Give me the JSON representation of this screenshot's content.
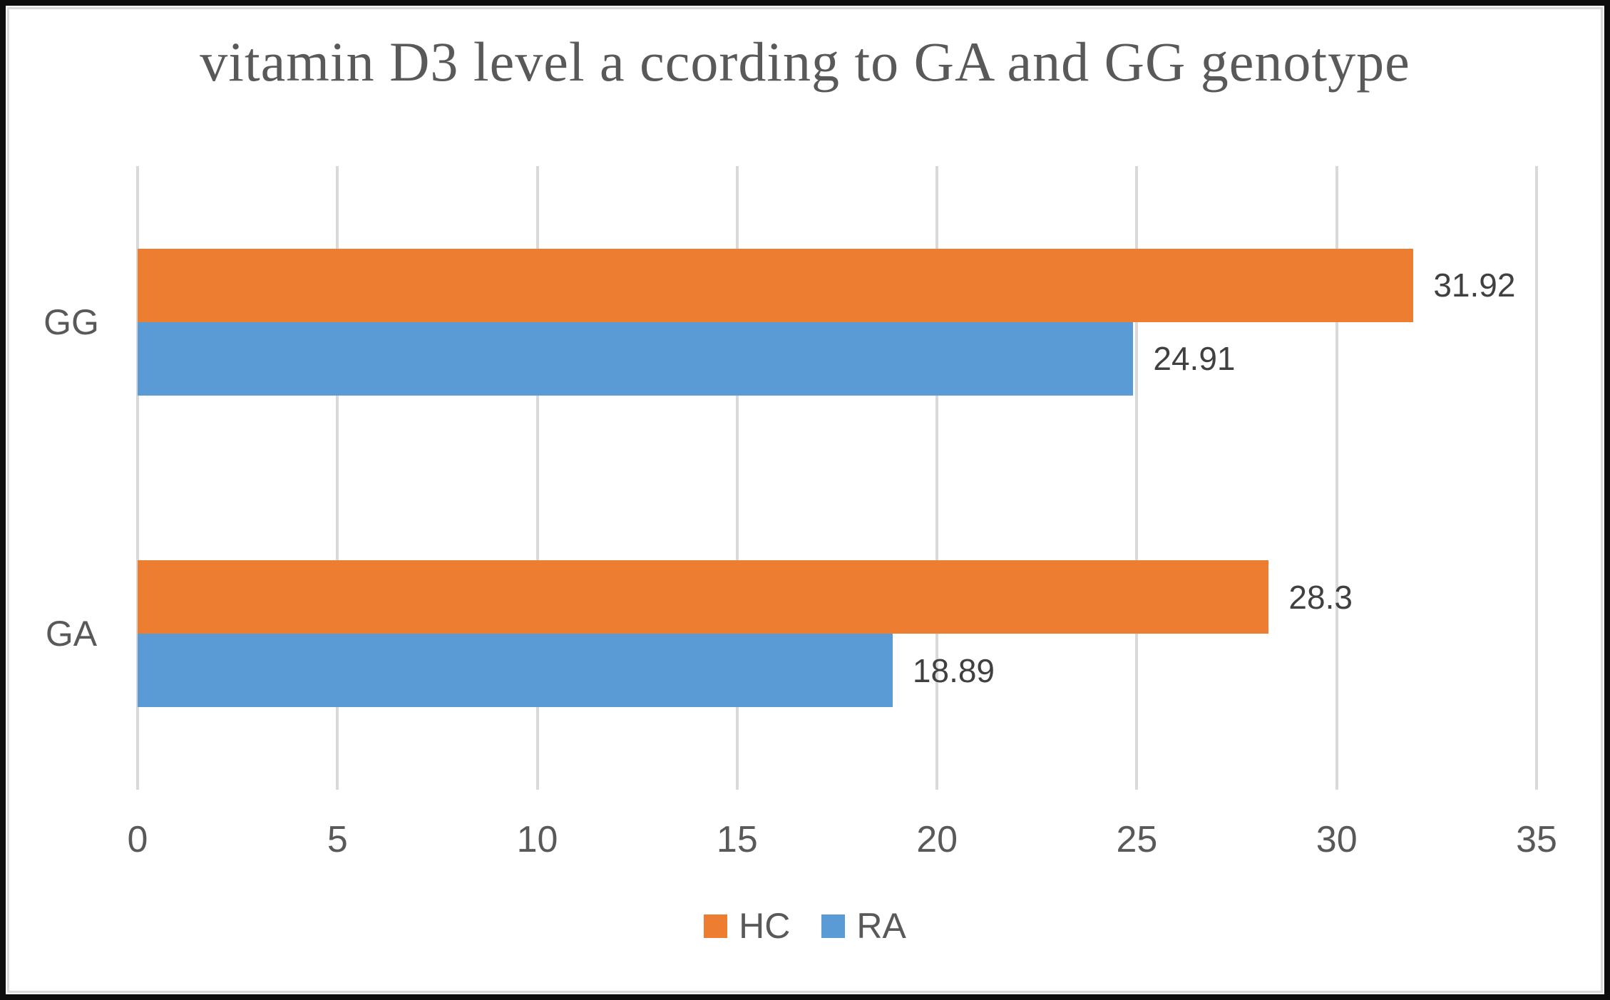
{
  "chart_data": {
    "type": "bar",
    "orientation": "horizontal",
    "title": "vitamin D3 level a ccording to GA and GG genotype",
    "categories": [
      "GG",
      "GA"
    ],
    "series": [
      {
        "name": "HC",
        "color": "#ED7D31",
        "values": [
          31.92,
          28.3
        ],
        "labels": [
          "31.92",
          "28.3"
        ]
      },
      {
        "name": "RA",
        "color": "#5B9BD5",
        "values": [
          24.91,
          18.89
        ],
        "labels": [
          "24.91",
          "18.89"
        ]
      }
    ],
    "x_axis": {
      "min": 0,
      "max": 35,
      "step": 5,
      "tick_labels": [
        "0",
        "5",
        "10",
        "15",
        "20",
        "25",
        "30",
        "35"
      ]
    },
    "legend": {
      "position": "bottom",
      "items": [
        {
          "label": "HC",
          "color": "#ED7D31"
        },
        {
          "label": "RA",
          "color": "#5B9BD5"
        }
      ]
    },
    "grid": true,
    "colors": {
      "gridline": "#D9D9D9",
      "title_text": "#595959",
      "axis_text": "#595959",
      "data_label_text": "#404040",
      "frame_border": "#0D0D0D"
    }
  }
}
